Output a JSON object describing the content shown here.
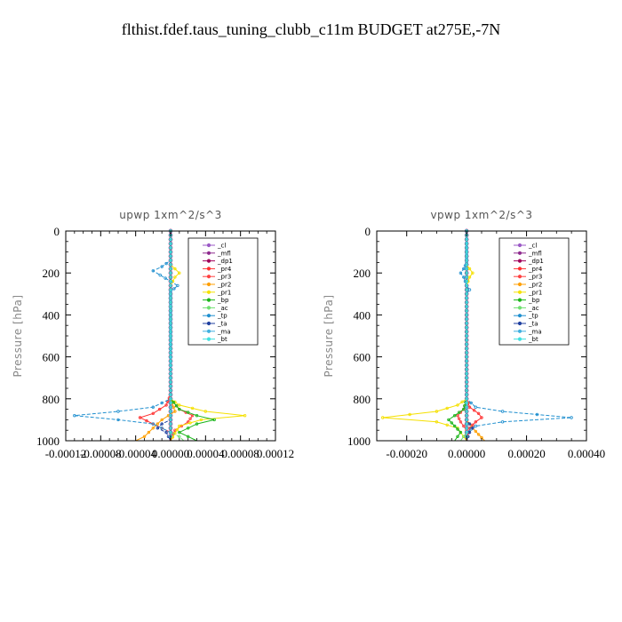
{
  "title": "flthist.fdef.taus_tuning_clubb_c11m  BUDGET at275E,-7N",
  "chart_data": [
    {
      "type": "line",
      "title": "upwp   1xm^2/s^3",
      "ylabel": "Pressure [hPa]",
      "xlabel": "",
      "xlim": [
        -0.00012,
        0.00012
      ],
      "ylim": [
        1000,
        0
      ],
      "x_ticks": [
        "-0.00012",
        "-0.00008",
        "-0.00004",
        "0.00000",
        "0.00004",
        "0.00008",
        "0.00012"
      ],
      "y_ticks": [
        "0",
        "200",
        "400",
        "600",
        "800",
        "1000"
      ],
      "legend_position": "top-right",
      "series": [
        {
          "name": "_cl",
          "color": "#9b59c6",
          "points": [
            [
              0,
              0
            ],
            [
              0,
              200
            ],
            [
              0,
              400
            ],
            [
              0,
              600
            ],
            [
              0,
              800
            ],
            [
              0,
              1000
            ]
          ]
        },
        {
          "name": "_mfl",
          "color": "#8e2a8e",
          "points": [
            [
              0,
              0
            ],
            [
              0,
              200
            ],
            [
              0,
              400
            ],
            [
              0,
              600
            ],
            [
              0,
              800
            ],
            [
              0,
              1000
            ]
          ]
        },
        {
          "name": "_dp1",
          "color": "#a0005a",
          "points": [
            [
              0,
              0
            ],
            [
              0,
              200
            ],
            [
              0,
              400
            ],
            [
              0,
              600
            ],
            [
              0,
              800
            ],
            [
              0,
              1000
            ]
          ]
        },
        {
          "name": "_pr4",
          "color": "#ff3030",
          "points": [
            [
              0,
              0
            ],
            [
              0,
              780
            ],
            [
              -5e-06,
              830
            ],
            [
              -2e-05,
              870
            ],
            [
              -3.5e-05,
              890
            ],
            [
              -2e-05,
              920
            ],
            [
              0,
              960
            ],
            [
              0,
              1000
            ]
          ]
        },
        {
          "name": "_pr3",
          "color": "#ff4040",
          "points": [
            [
              0,
              0
            ],
            [
              0,
              800
            ],
            [
              1e-05,
              850
            ],
            [
              2.5e-05,
              880
            ],
            [
              2e-05,
              910
            ],
            [
              5e-06,
              950
            ],
            [
              0,
              1000
            ]
          ]
        },
        {
          "name": "_pr2",
          "color": "#ff9f00",
          "points": [
            [
              0,
              0
            ],
            [
              0,
              800
            ],
            [
              5e-06,
              860
            ],
            [
              -1e-05,
              900
            ],
            [
              -2e-05,
              940
            ],
            [
              -3e-05,
              980
            ],
            [
              -4e-05,
              1000
            ]
          ]
        },
        {
          "name": "_pr1",
          "color": "#f5e000",
          "points": [
            [
              0,
              0
            ],
            [
              0,
              160
            ],
            [
              5e-06,
              180
            ],
            [
              1e-05,
              200
            ],
            [
              5e-06,
              220
            ],
            [
              0,
              260
            ],
            [
              0,
              800
            ],
            [
              1e-05,
              830
            ],
            [
              4e-05,
              860
            ],
            [
              8.5e-05,
              880
            ],
            [
              3.5e-05,
              900
            ],
            [
              1e-05,
              930
            ],
            [
              0,
              1000
            ]
          ]
        },
        {
          "name": "_bp",
          "color": "#19b519",
          "points": [
            [
              0,
              0
            ],
            [
              0,
              800
            ],
            [
              1e-05,
              850
            ],
            [
              3e-05,
              880
            ],
            [
              5e-05,
              900
            ],
            [
              3e-05,
              920
            ],
            [
              1e-05,
              960
            ],
            [
              2e-05,
              980
            ],
            [
              3e-05,
              1000
            ]
          ]
        },
        {
          "name": "_ac",
          "color": "#70e070",
          "points": [
            [
              0,
              0
            ],
            [
              0,
              960
            ],
            [
              1e-05,
              980
            ],
            [
              1.5e-05,
              1000
            ]
          ]
        },
        {
          "name": "_tp",
          "color": "#1f8fcf",
          "points": [
            [
              0,
              0
            ],
            [
              0,
              140
            ],
            [
              -1e-05,
              170
            ],
            [
              -2e-05,
              190
            ],
            [
              -1.2e-05,
              210
            ],
            [
              0,
              240
            ],
            [
              8e-06,
              260
            ],
            [
              0,
              290
            ],
            [
              0,
              800
            ],
            [
              -2e-05,
              840
            ],
            [
              -6e-05,
              860
            ],
            [
              -0.00011,
              880
            ],
            [
              -6e-05,
              900
            ],
            [
              -2e-05,
              920
            ],
            [
              0,
              960
            ],
            [
              0,
              1000
            ]
          ]
        },
        {
          "name": "_ta",
          "color": "#2040a0",
          "points": [
            [
              0,
              0
            ],
            [
              0,
              900
            ],
            [
              -1e-05,
              920
            ],
            [
              -1.5e-05,
              940
            ],
            [
              -5e-06,
              960
            ],
            [
              0,
              1000
            ]
          ]
        },
        {
          "name": "_ma",
          "color": "#40b0e0",
          "points": [
            [
              0,
              0
            ],
            [
              0,
              1000
            ]
          ]
        },
        {
          "name": "_bt",
          "color": "#40e0e0",
          "points": [
            [
              0,
              0
            ],
            [
              0,
              1000
            ]
          ]
        }
      ]
    },
    {
      "type": "line",
      "title": "vpwp   1xm^2/s^3",
      "ylabel": "Pressure [hPa]",
      "xlabel": "",
      "xlim": [
        -0.0003,
        0.0004
      ],
      "ylim": [
        1000,
        0
      ],
      "x_ticks": [
        "-0.00020",
        "0.00000",
        "0.00020",
        "0.00040"
      ],
      "y_ticks": [
        "0",
        "200",
        "400",
        "600",
        "800",
        "1000"
      ],
      "legend_position": "top-right",
      "series": [
        {
          "name": "_cl",
          "color": "#9b59c6",
          "points": [
            [
              0,
              0
            ],
            [
              0,
              200
            ],
            [
              0,
              400
            ],
            [
              0,
              600
            ],
            [
              0,
              800
            ],
            [
              0,
              1000
            ]
          ]
        },
        {
          "name": "_mfl",
          "color": "#8e2a8e",
          "points": [
            [
              0,
              0
            ],
            [
              0,
              200
            ],
            [
              0,
              400
            ],
            [
              0,
              600
            ],
            [
              0,
              800
            ],
            [
              0,
              1000
            ]
          ]
        },
        {
          "name": "_dp1",
          "color": "#a0005a",
          "points": [
            [
              0,
              0
            ],
            [
              0,
              200
            ],
            [
              0,
              400
            ],
            [
              0,
              600
            ],
            [
              0,
              800
            ],
            [
              0,
              1000
            ]
          ]
        },
        {
          "name": "_pr4",
          "color": "#ff3030",
          "points": [
            [
              0,
              0
            ],
            [
              0,
              800
            ],
            [
              1e-05,
              840
            ],
            [
              4e-05,
              870
            ],
            [
              5e-05,
              890
            ],
            [
              3e-05,
              910
            ],
            [
              1e-05,
              940
            ],
            [
              0,
              1000
            ]
          ]
        },
        {
          "name": "_pr3",
          "color": "#ff4040",
          "points": [
            [
              0,
              0
            ],
            [
              0,
              800
            ],
            [
              -1e-05,
              850
            ],
            [
              -3e-05,
              880
            ],
            [
              -2e-05,
              910
            ],
            [
              0,
              950
            ],
            [
              0,
              1000
            ]
          ]
        },
        {
          "name": "_pr2",
          "color": "#ff9f00",
          "points": [
            [
              0,
              0
            ],
            [
              0,
              800
            ],
            [
              0,
              900
            ],
            [
              2e-05,
              940
            ],
            [
              4e-05,
              970
            ],
            [
              6e-05,
              1000
            ]
          ]
        },
        {
          "name": "_pr1",
          "color": "#f5e000",
          "points": [
            [
              0,
              0
            ],
            [
              0,
              160
            ],
            [
              1e-05,
              180
            ],
            [
              2e-05,
              200
            ],
            [
              1e-05,
              220
            ],
            [
              0,
              260
            ],
            [
              0,
              800
            ],
            [
              -3e-05,
              830
            ],
            [
              -0.0001,
              860
            ],
            [
              -0.00028,
              890
            ],
            [
              -0.0001,
              910
            ],
            [
              -3e-05,
              940
            ],
            [
              0,
              1000
            ]
          ]
        },
        {
          "name": "_bp",
          "color": "#19b519",
          "points": [
            [
              0,
              0
            ],
            [
              0,
              800
            ],
            [
              -1e-05,
              850
            ],
            [
              -4e-05,
              880
            ],
            [
              -6e-05,
              900
            ],
            [
              -4e-05,
              930
            ],
            [
              -2e-05,
              960
            ],
            [
              -3e-05,
              980
            ],
            [
              -4e-05,
              1000
            ]
          ]
        },
        {
          "name": "_ac",
          "color": "#70e070",
          "points": [
            [
              0,
              0
            ],
            [
              0,
              960
            ],
            [
              -1e-05,
              980
            ],
            [
              -2e-05,
              1000
            ]
          ]
        },
        {
          "name": "_tp",
          "color": "#1f8fcf",
          "points": [
            [
              0,
              0
            ],
            [
              0,
              150
            ],
            [
              -1e-05,
              180
            ],
            [
              -2e-05,
              200
            ],
            [
              -1e-05,
              220
            ],
            [
              0,
              260
            ],
            [
              1e-05,
              280
            ],
            [
              0,
              300
            ],
            [
              0,
              800
            ],
            [
              3e-05,
              840
            ],
            [
              0.00012,
              860
            ],
            [
              0.00035,
              890
            ],
            [
              0.00012,
              910
            ],
            [
              3e-05,
              930
            ],
            [
              0,
              960
            ],
            [
              0,
              1000
            ]
          ]
        },
        {
          "name": "_ta",
          "color": "#2040a0",
          "points": [
            [
              0,
              0
            ],
            [
              0,
              900
            ],
            [
              1e-05,
              920
            ],
            [
              2e-05,
              940
            ],
            [
              1e-05,
              960
            ],
            [
              0,
              1000
            ]
          ]
        },
        {
          "name": "_ma",
          "color": "#40b0e0",
          "points": [
            [
              0,
              0
            ],
            [
              0,
              1000
            ]
          ]
        },
        {
          "name": "_bt",
          "color": "#40e0e0",
          "points": [
            [
              0,
              0
            ],
            [
              0,
              1000
            ]
          ]
        }
      ]
    }
  ]
}
